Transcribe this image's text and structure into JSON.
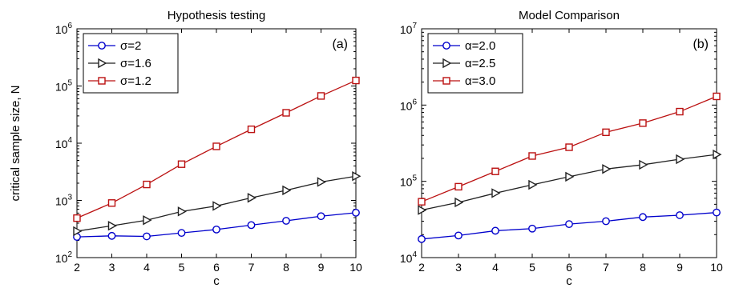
{
  "chart_data": [
    {
      "type": "line",
      "title": "Hypothesis testing",
      "panel_label": "(a)",
      "xlabel": "c",
      "ylabel": "critical sample size, N",
      "yscale": "log",
      "xlim": [
        2,
        10
      ],
      "ylim": [
        100,
        1000000
      ],
      "x_ticks": [
        "2",
        "3",
        "4",
        "5",
        "6",
        "7",
        "8",
        "9",
        "10"
      ],
      "y_ticks": [
        {
          "base": "10",
          "exp": "2",
          "value": 100
        },
        {
          "base": "10",
          "exp": "3",
          "value": 1000
        },
        {
          "base": "10",
          "exp": "4",
          "value": 10000
        },
        {
          "base": "10",
          "exp": "5",
          "value": 100000
        },
        {
          "base": "10",
          "exp": "6",
          "value": 1000000
        }
      ],
      "grid": false,
      "legend_position": "top-left",
      "x": [
        2,
        3,
        4,
        5,
        6,
        7,
        8,
        9,
        10
      ],
      "series": [
        {
          "name": "σ=2",
          "marker": "circle",
          "color": "#0000cc",
          "values": [
            230,
            240,
            235,
            270,
            310,
            370,
            440,
            530,
            610
          ]
        },
        {
          "name": "σ=1.6",
          "marker": "triangle-right",
          "color": "#222222",
          "values": [
            290,
            360,
            450,
            640,
            800,
            1110,
            1500,
            2100,
            2650
          ]
        },
        {
          "name": "σ=1.2",
          "marker": "square",
          "color": "#bb1111",
          "values": [
            490,
            900,
            1900,
            4300,
            8800,
            17500,
            34000,
            67000,
            125000
          ]
        }
      ]
    },
    {
      "type": "line",
      "title": "Model Comparison",
      "panel_label": "(b)",
      "xlabel": "c",
      "ylabel": "",
      "yscale": "log",
      "xlim": [
        2,
        10
      ],
      "ylim": [
        10000,
        10000000
      ],
      "x_ticks": [
        "2",
        "3",
        "4",
        "5",
        "6",
        "7",
        "8",
        "9",
        "10"
      ],
      "y_ticks": [
        {
          "base": "10",
          "exp": "4",
          "value": 10000
        },
        {
          "base": "10",
          "exp": "5",
          "value": 100000
        },
        {
          "base": "10",
          "exp": "6",
          "value": 1000000
        },
        {
          "base": "10",
          "exp": "7",
          "value": 10000000
        }
      ],
      "grid": false,
      "legend_position": "top-left",
      "x": [
        2,
        3,
        4,
        5,
        6,
        7,
        8,
        9,
        10
      ],
      "series": [
        {
          "name": "α=2.0",
          "marker": "circle",
          "color": "#0000cc",
          "values": [
            17500,
            19500,
            22500,
            24000,
            27500,
            30000,
            34000,
            36000,
            39000
          ]
        },
        {
          "name": "α=2.5",
          "marker": "triangle-right",
          "color": "#222222",
          "values": [
            42000,
            53000,
            70000,
            90000,
            115000,
            145000,
            165000,
            195000,
            225000
          ]
        },
        {
          "name": "α=3.0",
          "marker": "square",
          "color": "#bb1111",
          "values": [
            54000,
            85000,
            135000,
            215000,
            280000,
            440000,
            580000,
            820000,
            1300000
          ]
        }
      ]
    }
  ]
}
